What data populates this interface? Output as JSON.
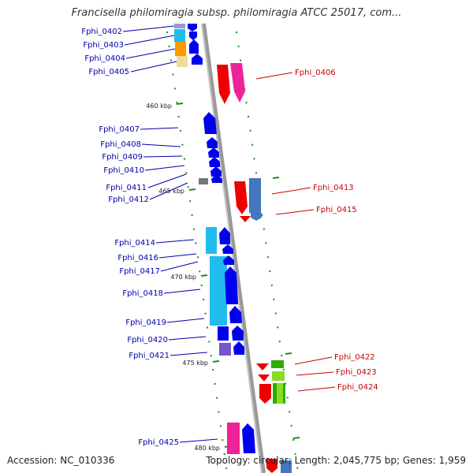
{
  "header": {
    "title": "Francisella philomiragia subsp. philomiragia ATCC 25017, com..."
  },
  "footer": {
    "accession": "Accession: NC_010336",
    "topology": "Topology: circular; Length: 2,045,775 bp; Genes: 1,959"
  },
  "ticks": [
    "460 kbp",
    "465 kbp",
    "470 kbp",
    "475 kbp",
    "480 kbp"
  ],
  "genes_left": [
    "Fphi_0402",
    "Fphi_0403",
    "Fphi_0404",
    "Fphi_0405",
    "Fphi_0407",
    "Fphi_0408",
    "Fphi_0409",
    "Fphi_0410",
    "Fphi_0411",
    "Fphi_0412",
    "Fphi_0414",
    "Fphi_0416",
    "Fphi_0417",
    "Fphi_0418",
    "Fphi_0419",
    "Fphi_0420",
    "Fphi_0421",
    "Fphi_0425"
  ],
  "genes_right": [
    "Fphi_0406",
    "Fphi_0413",
    "Fphi_0415",
    "Fphi_0422",
    "Fphi_0423",
    "Fphi_0424"
  ],
  "colors": {
    "blue": "#0000ee",
    "cyan": "#22bbee",
    "orange": "#ff9900",
    "red": "#ee0000",
    "pink": "#ee2299",
    "steelblue": "#4477bb",
    "green": "#33aa00",
    "lightgreen": "#88dd22",
    "purple": "#7755cc",
    "gray": "#777777",
    "tan": "#eedd99"
  }
}
